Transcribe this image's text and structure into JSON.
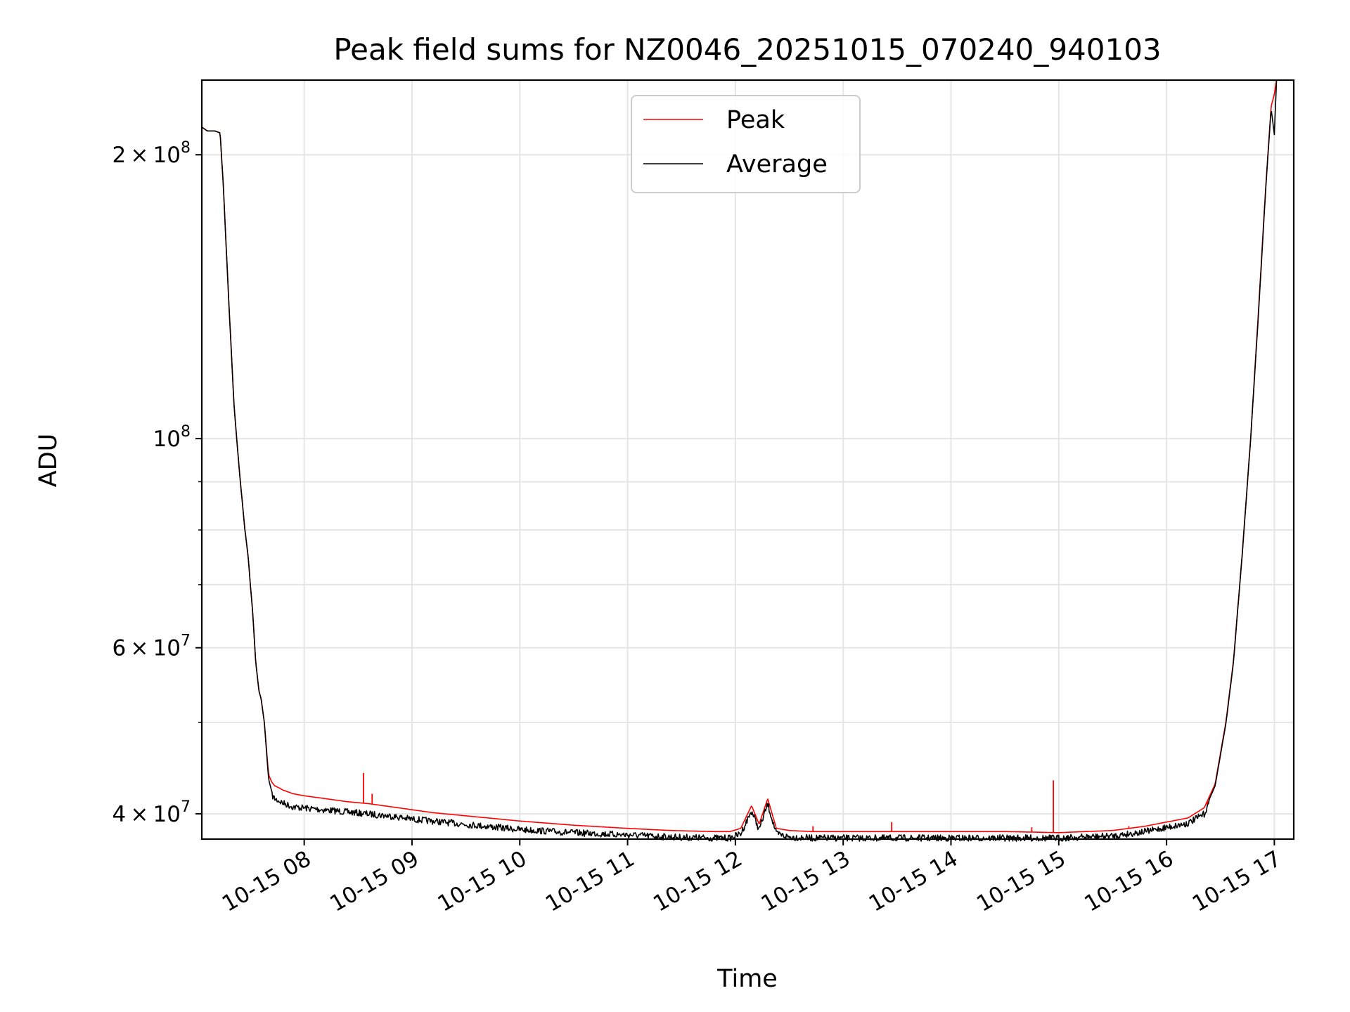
{
  "chart_data": {
    "type": "line",
    "title": "Peak field sums for NZ0046_20251015_070240_940103",
    "xlabel": "Time",
    "ylabel": "ADU",
    "yscale": "log",
    "grid": true,
    "legend_position": "top-center",
    "xlim_hours": [
      7.05,
      17.18
    ],
    "ylim": [
      37600000,
      240000000
    ],
    "x_ticks": [
      {
        "hour": 8,
        "label": "10-15 08"
      },
      {
        "hour": 9,
        "label": "10-15 09"
      },
      {
        "hour": 10,
        "label": "10-15 10"
      },
      {
        "hour": 11,
        "label": "10-15 11"
      },
      {
        "hour": 12,
        "label": "10-15 12"
      },
      {
        "hour": 13,
        "label": "10-15 13"
      },
      {
        "hour": 14,
        "label": "10-15 14"
      },
      {
        "hour": 15,
        "label": "10-15 15"
      },
      {
        "hour": 16,
        "label": "10-15 16"
      },
      {
        "hour": 17,
        "label": "10-15 17"
      }
    ],
    "y_ticks": [
      {
        "value": 40000000,
        "mantissa": "4",
        "exponent": "7"
      },
      {
        "value": 60000000,
        "mantissa": "6",
        "exponent": "7"
      },
      {
        "value": 100000000,
        "mantissa": "",
        "exponent": "8"
      },
      {
        "value": 200000000,
        "mantissa": "2",
        "exponent": "8"
      }
    ],
    "y_minor_ticks": [
      50000000,
      70000000,
      80000000,
      90000000
    ],
    "series": [
      {
        "name": "Peak",
        "color": "#ff0000",
        "x_hours": [
          7.05,
          7.1,
          7.17,
          7.22,
          7.25,
          7.3,
          7.35,
          7.4,
          7.45,
          7.48,
          7.5,
          7.52,
          7.55,
          7.58,
          7.6,
          7.63,
          7.67,
          7.7,
          7.73,
          7.77,
          7.8,
          7.85,
          7.9,
          8.0,
          8.2,
          8.4,
          8.6,
          8.8,
          9.0,
          9.2,
          9.5,
          10.0,
          10.5,
          11.0,
          11.4,
          11.8,
          11.95,
          12.05,
          12.15,
          12.22,
          12.3,
          12.38,
          12.5,
          12.7,
          13.0,
          13.5,
          14.0,
          14.5,
          15.0,
          15.5,
          15.8,
          16.0,
          16.2,
          16.35,
          16.45,
          16.55,
          16.62,
          16.7,
          16.78,
          16.85,
          16.92,
          16.97,
          17.0,
          17.02
        ],
        "values": [
          214000000,
          212000000,
          212000000,
          211000000,
          185000000,
          140000000,
          108000000,
          92000000,
          80000000,
          75000000,
          70000000,
          66000000,
          58000000,
          54000000,
          53000000,
          50000000,
          44000000,
          43200000,
          42800000,
          42600000,
          42400000,
          42200000,
          42000000,
          41800000,
          41500000,
          41200000,
          41000000,
          40700000,
          40400000,
          40100000,
          39800000,
          39300000,
          38900000,
          38600000,
          38400000,
          38300000,
          38300000,
          38600000,
          40800000,
          39000000,
          41500000,
          38600000,
          38400000,
          38300000,
          38300000,
          38300000,
          38300000,
          38300000,
          38200000,
          38400000,
          38800000,
          39200000,
          39600000,
          40600000,
          43000000,
          50000000,
          58000000,
          75000000,
          100000000,
          135000000,
          185000000,
          225000000,
          232000000,
          240000000
        ],
        "spikes": [
          {
            "hour": 8.55,
            "value": 44200000
          },
          {
            "hour": 8.63,
            "value": 42000000
          },
          {
            "hour": 12.72,
            "value": 38800000
          },
          {
            "hour": 13.45,
            "value": 39200000
          },
          {
            "hour": 14.75,
            "value": 38700000
          },
          {
            "hour": 14.95,
            "value": 43400000
          },
          {
            "hour": 15.65,
            "value": 38800000
          },
          {
            "hour": 16.38,
            "value": 40800000
          }
        ]
      },
      {
        "name": "Average",
        "color": "#000000",
        "x_hours": [
          7.05,
          7.1,
          7.17,
          7.22,
          7.25,
          7.3,
          7.35,
          7.4,
          7.45,
          7.48,
          7.5,
          7.52,
          7.55,
          7.58,
          7.6,
          7.63,
          7.67,
          7.7,
          7.73,
          7.77,
          7.8,
          7.85,
          7.9,
          8.0,
          8.2,
          8.4,
          8.6,
          8.8,
          9.0,
          9.2,
          9.5,
          10.0,
          10.5,
          11.0,
          11.4,
          11.8,
          11.95,
          12.05,
          12.15,
          12.22,
          12.3,
          12.38,
          12.5,
          12.7,
          13.0,
          13.5,
          14.0,
          14.5,
          15.0,
          15.5,
          15.8,
          16.0,
          16.2,
          16.35,
          16.45,
          16.55,
          16.62,
          16.7,
          16.78,
          16.85,
          16.92,
          16.97,
          17.0,
          17.02
        ],
        "values": [
          214000000,
          212000000,
          212000000,
          211000000,
          185000000,
          140000000,
          108000000,
          92000000,
          80000000,
          75000000,
          70000000,
          66000000,
          58000000,
          54000000,
          53000000,
          50000000,
          43500000,
          42200000,
          41800000,
          41600000,
          41400000,
          41200000,
          41000000,
          40900000,
          40700000,
          40500000,
          40300000,
          40100000,
          39800000,
          39600000,
          39300000,
          38800000,
          38500000,
          38300000,
          38100000,
          38000000,
          38000000,
          38400000,
          40600000,
          38800000,
          41300000,
          38400000,
          38100000,
          38000000,
          38000000,
          38000000,
          38000000,
          38000000,
          38000000,
          38200000,
          38600000,
          39000000,
          39400000,
          40300000,
          42800000,
          49800000,
          57800000,
          74800000,
          99800000,
          134000000,
          184000000,
          224000000,
          210000000,
          240000000
        ],
        "noise_fraction": 0.01
      }
    ]
  }
}
